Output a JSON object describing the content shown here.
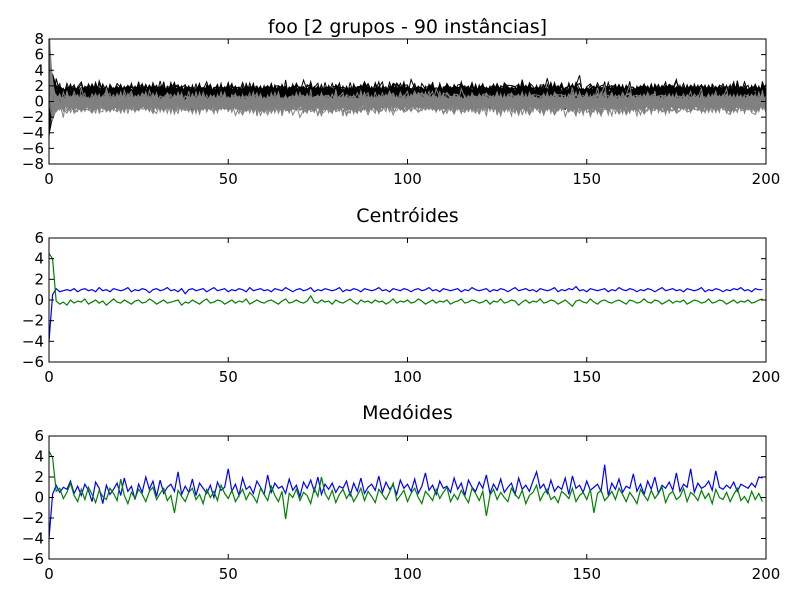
{
  "chart_data": [
    {
      "type": "line",
      "title": "foo [2 grupos - 90 instâncias]",
      "xlabel": "",
      "ylabel": "",
      "xlim": [
        0,
        200
      ],
      "ylim": [
        -8,
        8
      ],
      "xticks": [
        "0",
        "50",
        "100",
        "150",
        "200"
      ],
      "yticks": [
        "8",
        "6",
        "4",
        "2",
        "0",
        "−2",
        "−4",
        "−6",
        "−8"
      ],
      "grid": false,
      "series": [
        {
          "color": "#000000",
          "count": 45,
          "start": 0,
          "mean": 1.0,
          "spread": 1.0,
          "amplitude_max": 4.2
        },
        {
          "color": "#808080",
          "count": 45,
          "start": 4.5,
          "mean": -0.2,
          "spread": 1.0,
          "amplitude_max": 3.0
        }
      ]
    },
    {
      "type": "line",
      "title": "Centróides",
      "xlabel": "",
      "ylabel": "",
      "xlim": [
        0,
        200
      ],
      "ylim": [
        -6,
        6
      ],
      "xticks": [
        "0",
        "50",
        "100",
        "150",
        "200"
      ],
      "yticks": [
        "6",
        "4",
        "2",
        "0",
        "−2",
        "−4",
        "−6"
      ],
      "grid": false,
      "series": [
        {
          "color": "#0000ff",
          "values": [
            -4.0,
            0.5,
            1.1,
            0.8,
            0.9,
            1.0,
            0.9,
            1.1,
            0.8,
            1.0,
            1.1,
            0.9,
            1.0,
            0.8,
            1.2,
            0.9,
            1.0,
            0.8,
            1.1,
            1.0,
            0.9,
            1.0,
            1.2,
            0.8,
            1.0,
            0.9,
            1.1,
            1.0,
            0.7,
            1.0,
            1.1,
            0.9,
            1.0,
            1.2,
            0.9,
            1.0,
            0.8,
            1.1,
            0.6,
            1.0,
            1.1,
            0.9,
            1.0,
            1.1,
            0.8,
            1.0,
            1.2,
            0.9,
            1.0,
            1.1,
            0.8,
            1.0,
            0.9,
            1.1,
            1.0,
            0.8,
            1.2,
            0.9,
            1.0,
            1.1,
            0.9,
            1.0,
            0.8,
            1.1,
            1.0,
            0.9,
            1.2,
            1.0,
            0.8,
            1.0,
            1.1,
            0.9,
            1.0,
            1.2,
            0.8,
            1.0,
            0.9,
            1.1,
            1.0,
            0.9,
            1.0,
            1.2,
            0.8,
            1.0,
            0.9,
            1.1,
            1.0,
            0.8,
            1.1,
            1.0,
            0.9,
            1.0,
            1.2,
            0.9,
            1.0,
            0.8,
            1.1,
            1.0,
            0.9,
            1.1,
            1.0,
            0.8,
            1.0,
            1.1,
            0.9,
            1.0,
            1.2,
            0.9,
            1.0,
            0.8,
            1.1,
            1.0,
            0.9,
            1.0,
            1.1,
            0.8,
            1.0,
            0.9,
            1.2,
            1.0,
            0.9,
            1.0,
            1.1,
            0.8,
            1.0,
            0.9,
            1.1,
            1.0,
            0.8,
            1.0,
            1.2,
            0.9,
            1.0,
            1.1,
            0.9,
            1.0,
            0.8,
            1.1,
            1.0,
            0.9,
            1.0,
            1.2,
            0.8,
            1.0,
            0.9,
            1.1,
            1.0,
            1.3,
            0.9,
            1.0,
            0.8,
            1.1,
            1.0,
            0.9,
            1.0,
            1.1,
            0.8,
            1.0,
            0.9,
            1.2,
            1.0,
            0.9,
            1.1,
            1.0,
            0.8,
            1.0,
            0.9,
            1.1,
            1.0,
            0.8,
            1.0,
            1.2,
            0.9,
            1.0,
            1.1,
            0.9,
            1.0,
            0.8,
            1.1,
            1.0,
            0.9,
            1.0,
            1.2,
            0.8,
            1.0,
            0.9,
            1.1,
            1.0,
            0.8,
            1.0,
            0.9,
            1.1,
            1.0,
            1.2,
            0.9,
            1.0,
            0.8,
            1.1,
            1.0,
            1.0
          ]
        },
        {
          "color": "#008000",
          "values": [
            4.5,
            4.0,
            -0.1,
            -0.4,
            -0.2,
            -0.5,
            0.0,
            -0.3,
            -0.1,
            -0.2,
            0.1,
            -0.4,
            -0.2,
            0.0,
            -0.3,
            -0.1,
            -0.5,
            -0.2,
            0.1,
            -0.2,
            -0.3,
            0.0,
            -0.2,
            -0.4,
            -0.1,
            0.0,
            -0.3,
            -0.2,
            0.1,
            -0.1,
            -0.4,
            -0.2,
            0.0,
            -0.3,
            -0.2,
            -0.1,
            0.0,
            -0.5,
            -0.2,
            -0.3,
            0.0,
            -0.2,
            -0.4,
            -0.1,
            0.1,
            -0.3,
            -0.2,
            0.0,
            -0.1,
            -0.4,
            -0.2,
            0.0,
            -0.3,
            -0.1,
            -0.2,
            0.1,
            -0.4,
            -0.2,
            0.0,
            -0.2,
            -0.3,
            -0.1,
            0.0,
            -0.2,
            -0.4,
            -0.1,
            0.1,
            -0.3,
            -0.2,
            0.0,
            -0.2,
            -0.3,
            -0.1,
            0.4,
            -0.2,
            -0.3,
            0.0,
            -0.2,
            -0.1,
            -0.4,
            0.0,
            -0.2,
            -0.3,
            -0.1,
            0.1,
            -0.2,
            -0.4,
            0.0,
            -0.2,
            -0.1,
            -0.3,
            0.0,
            -0.2,
            -0.1,
            -0.4,
            -0.2,
            0.1,
            -0.3,
            -0.1,
            -0.2,
            0.0,
            -0.3,
            -0.2,
            0.1,
            -0.1,
            -0.4,
            -0.2,
            0.0,
            -0.3,
            -0.1,
            -0.2,
            0.0,
            -0.4,
            -0.2,
            -0.1,
            0.1,
            -0.3,
            -0.2,
            0.0,
            -0.1,
            -0.3,
            -0.2,
            0.0,
            -0.4,
            -0.1,
            -0.2,
            0.1,
            -0.3,
            -0.2,
            0.0,
            -0.1,
            -0.5,
            -0.2,
            0.0,
            -0.3,
            -0.1,
            -0.2,
            0.1,
            -0.3,
            -0.2,
            0.0,
            -0.1,
            -0.4,
            -0.2,
            0.0,
            -0.3,
            -0.6,
            -0.1,
            0.0,
            -0.2,
            -0.3,
            0.1,
            -0.2,
            -0.4,
            -0.1,
            0.0,
            -0.2,
            -0.3,
            -0.1,
            0.0,
            -0.2,
            -0.4,
            0.0,
            -0.1,
            -0.3,
            -0.2,
            0.1,
            -0.2,
            -0.3,
            0.0,
            -0.1,
            -0.4,
            -0.2,
            0.0,
            -0.3,
            -0.1,
            -0.2,
            0.0,
            -0.4,
            -0.2,
            0.0,
            -0.1,
            -0.3,
            -0.2,
            0.1,
            -0.3,
            -0.2,
            0.0,
            -0.1,
            -0.4,
            -0.2,
            0.0,
            -0.3,
            -0.1,
            -0.2,
            0.0,
            -0.3,
            -0.2,
            0.0,
            0.1
          ]
        }
      ]
    },
    {
      "type": "line",
      "title": "Medóides",
      "xlabel": "",
      "ylabel": "",
      "xlim": [
        0,
        200
      ],
      "ylim": [
        -6,
        6
      ],
      "xticks": [
        "0",
        "50",
        "100",
        "150",
        "200"
      ],
      "yticks": [
        "6",
        "4",
        "2",
        "0",
        "−2",
        "−4",
        "−6"
      ],
      "grid": false,
      "series": [
        {
          "color": "#0000ff",
          "values": [
            -4.0,
            0.3,
            1.2,
            0.5,
            1.0,
            0.8,
            1.6,
            0.4,
            1.1,
            0.2,
            1.3,
            0.7,
            -0.4,
            1.5,
            0.9,
            -0.6,
            1.2,
            0.3,
            0.8,
            1.4,
            0.2,
            1.9,
            0.6,
            1.1,
            -0.2,
            1.3,
            0.5,
            2.0,
            0.8,
            1.6,
            0.1,
            1.7,
            0.4,
            1.0,
            1.3,
            0.6,
            2.5,
            0.3,
            1.1,
            0.5,
            1.8,
            0.2,
            1.4,
            0.9,
            0.4,
            1.2,
            0.0,
            1.5,
            0.7,
            1.0,
            2.8,
            0.6,
            1.3,
            0.2,
            1.9,
            0.8,
            1.1,
            0.4,
            1.6,
            1.0,
            0.3,
            2.2,
            0.5,
            1.4,
            0.9,
            1.1,
            0.4,
            1.8,
            0.7,
            1.2,
            0.1,
            1.5,
            0.9,
            1.7,
            0.6,
            2.0,
            0.3,
            1.3,
            0.8,
            1.4,
            0.5,
            1.1,
            0.9,
            1.6,
            0.2,
            1.4,
            0.6,
            1.9,
            0.4,
            1.0,
            1.3,
            0.7,
            2.1,
            0.5,
            1.5,
            0.8,
            1.2,
            0.3,
            1.7,
            0.9,
            1.3,
            0.6,
            1.8,
            0.4,
            1.1,
            2.4,
            0.7,
            1.2,
            0.3,
            1.6,
            0.9,
            1.1,
            0.5,
            1.9,
            0.8,
            1.4,
            0.2,
            1.7,
            1.0,
            0.6,
            1.5,
            0.9,
            2.2,
            0.4,
            1.3,
            0.7,
            1.8,
            0.5,
            1.0,
            1.4,
            0.3,
            1.9,
            0.8,
            1.2,
            0.6,
            1.6,
            2.5,
            0.9,
            1.3,
            0.4,
            1.7,
            0.6,
            1.1,
            0.8,
            1.9,
            0.3,
            2.1,
            0.9,
            1.2,
            0.5,
            1.6,
            0.7,
            1.0,
            1.3,
            0.6,
            3.2,
            0.2,
            1.4,
            0.8,
            1.8,
            0.5,
            1.1,
            0.9,
            2.3,
            0.6,
            1.3,
            0.3,
            1.6,
            0.8,
            2.0,
            0.4,
            1.2,
            0.9,
            1.5,
            0.7,
            2.4,
            0.6,
            1.3,
            1.0,
            2.8,
            0.5,
            1.4,
            0.9,
            1.1,
            1.6,
            0.7,
            2.6,
            1.0,
            0.8,
            1.2,
            0.9,
            1.5,
            0.6,
            1.3,
            1.1,
            0.9,
            1.4,
            1.0,
            2.0,
            1.9
          ]
        },
        {
          "color": "#008000",
          "values": [
            4.5,
            3.9,
            0.6,
            0.9,
            -0.1,
            0.5,
            1.4,
            0.2,
            -0.4,
            0.8,
            -0.2,
            1.0,
            0.3,
            -0.5,
            0.7,
            0.1,
            -0.2,
            0.9,
            0.4,
            -0.3,
            1.8,
            0.2,
            -0.6,
            0.5,
            -0.1,
            0.8,
            0.3,
            -0.4,
            0.6,
            1.0,
            -0.2,
            0.4,
            0.9,
            -0.3,
            0.2,
            -1.5,
            0.7,
            0.1,
            -0.4,
            0.5,
            0.9,
            -0.2,
            0.3,
            -0.6,
            0.8,
            0.0,
            0.6,
            -0.3,
            1.2,
            0.4,
            -0.1,
            0.7,
            -0.4,
            0.2,
            0.8,
            -0.2,
            0.5,
            0.1,
            -0.5,
            0.9,
            0.3,
            -0.3,
            1.1,
            0.2,
            -0.4,
            0.6,
            -2.1,
            0.4,
            0.0,
            0.8,
            -0.3,
            0.5,
            0.2,
            -0.6,
            0.9,
            0.1,
            2.0,
            0.4,
            -0.2,
            0.7,
            -0.5,
            0.3,
            0.8,
            -0.1,
            0.5,
            -0.4,
            0.2,
            0.9,
            -0.3,
            0.6,
            0.1,
            -0.5,
            0.8,
            0.3,
            -0.2,
            0.5,
            1.4,
            -0.3,
            0.2,
            0.7,
            -0.4,
            0.4,
            0.9,
            0.0,
            -0.6,
            0.6,
            0.2,
            -0.3,
            0.8,
            -0.1,
            0.5,
            1.0,
            -0.4,
            0.3,
            -0.2,
            0.7,
            0.1,
            -0.5,
            0.9,
            0.4,
            -0.3,
            0.6,
            -1.8,
            0.2,
            0.8,
            -0.2,
            0.5,
            0.0,
            -0.4,
            0.9,
            0.3,
            -0.1,
            0.7,
            -0.6,
            0.2,
            0.5,
            1.2,
            -0.3,
            0.4,
            0.8,
            -0.2,
            0.1,
            -0.5,
            0.6,
            0.3,
            -0.1,
            0.9,
            -0.4,
            0.2,
            0.5,
            -0.2,
            0.8,
            -1.5,
            0.4,
            0.7,
            -0.3,
            0.1,
            0.6,
            -0.2,
            0.9,
            0.3,
            -0.4,
            0.5,
            0.0,
            -0.6,
            0.8,
            0.2,
            -0.3,
            0.7,
            -0.1,
            0.4,
            1.0,
            -0.5,
            0.3,
            0.6,
            -0.2,
            0.1,
            0.9,
            -0.4,
            0.5,
            0.2,
            -0.3,
            0.7,
            -0.1,
            0.4,
            -0.6,
            0.8,
            0.0,
            -0.2,
            0.5,
            -0.4,
            0.3,
            0.9,
            -0.3,
            0.1,
            -0.5,
            0.6,
            -0.2,
            0.4,
            -0.4
          ]
        }
      ]
    }
  ]
}
